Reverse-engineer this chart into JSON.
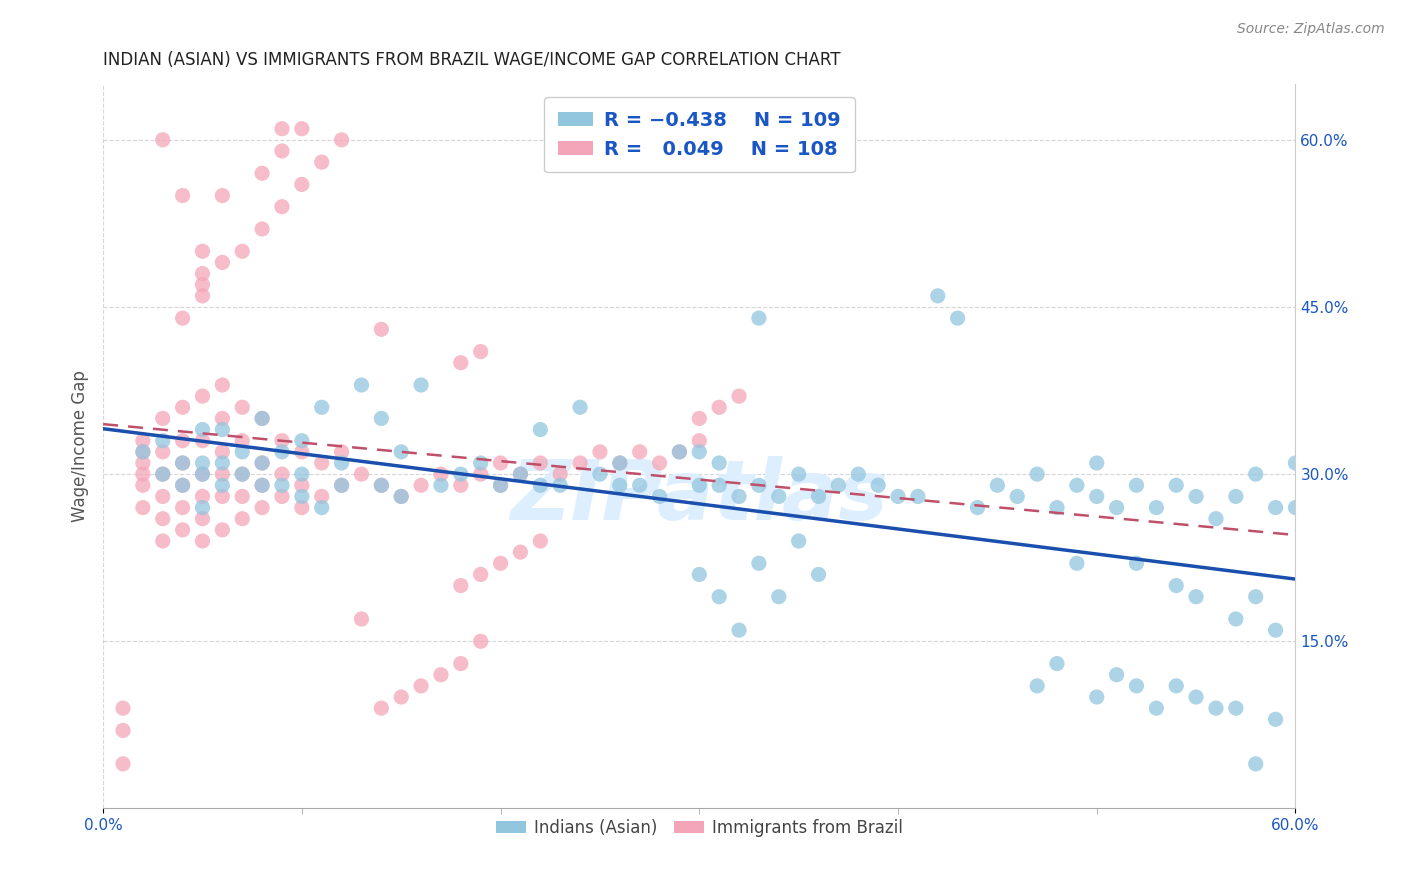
{
  "title": "INDIAN (ASIAN) VS IMMIGRANTS FROM BRAZIL WAGE/INCOME GAP CORRELATION CHART",
  "source": "Source: ZipAtlas.com",
  "ylabel": "Wage/Income Gap",
  "xlim": [
    0.0,
    0.6
  ],
  "ylim": [
    0.0,
    0.65
  ],
  "ytick_labels_right": [
    "15.0%",
    "30.0%",
    "45.0%",
    "60.0%"
  ],
  "ytick_vals_right": [
    0.15,
    0.3,
    0.45,
    0.6
  ],
  "color_blue": "#92c5de",
  "color_pink": "#f4a6b8",
  "trendline_blue": "#1a4fad",
  "trendline_pink": "#c0506a",
  "watermark": "ZIPatlas",
  "legend_text_color": "#1a56c4",
  "grid_color": "#cccccc",
  "blue_R": -0.438,
  "blue_N": 109,
  "pink_R": 0.049,
  "pink_N": 108,
  "blue_x": [
    0.02,
    0.03,
    0.03,
    0.04,
    0.04,
    0.05,
    0.05,
    0.05,
    0.05,
    0.06,
    0.06,
    0.06,
    0.07,
    0.07,
    0.08,
    0.08,
    0.08,
    0.09,
    0.09,
    0.1,
    0.1,
    0.1,
    0.11,
    0.11,
    0.12,
    0.12,
    0.13,
    0.14,
    0.14,
    0.15,
    0.15,
    0.16,
    0.17,
    0.18,
    0.19,
    0.2,
    0.21,
    0.22,
    0.22,
    0.23,
    0.24,
    0.25,
    0.26,
    0.26,
    0.27,
    0.28,
    0.29,
    0.3,
    0.3,
    0.31,
    0.31,
    0.32,
    0.33,
    0.33,
    0.34,
    0.35,
    0.36,
    0.37,
    0.38,
    0.39,
    0.4,
    0.41,
    0.42,
    0.43,
    0.44,
    0.45,
    0.46,
    0.47,
    0.48,
    0.49,
    0.5,
    0.5,
    0.51,
    0.52,
    0.52,
    0.53,
    0.54,
    0.54,
    0.55,
    0.55,
    0.56,
    0.57,
    0.57,
    0.58,
    0.58,
    0.59,
    0.59,
    0.6,
    0.6,
    0.3,
    0.31,
    0.32,
    0.33,
    0.34,
    0.35,
    0.36,
    0.47,
    0.48,
    0.49,
    0.5,
    0.51,
    0.52,
    0.53,
    0.54,
    0.55,
    0.56,
    0.57,
    0.58,
    0.59
  ],
  "blue_y": [
    0.32,
    0.3,
    0.33,
    0.29,
    0.31,
    0.27,
    0.3,
    0.31,
    0.34,
    0.29,
    0.31,
    0.34,
    0.3,
    0.32,
    0.29,
    0.31,
    0.35,
    0.29,
    0.32,
    0.28,
    0.3,
    0.33,
    0.27,
    0.36,
    0.29,
    0.31,
    0.38,
    0.29,
    0.35,
    0.28,
    0.32,
    0.38,
    0.29,
    0.3,
    0.31,
    0.29,
    0.3,
    0.29,
    0.34,
    0.29,
    0.36,
    0.3,
    0.29,
    0.31,
    0.29,
    0.28,
    0.32,
    0.29,
    0.32,
    0.29,
    0.31,
    0.28,
    0.29,
    0.44,
    0.28,
    0.3,
    0.28,
    0.29,
    0.3,
    0.29,
    0.28,
    0.28,
    0.46,
    0.44,
    0.27,
    0.29,
    0.28,
    0.3,
    0.27,
    0.29,
    0.28,
    0.31,
    0.27,
    0.29,
    0.22,
    0.27,
    0.29,
    0.2,
    0.28,
    0.19,
    0.26,
    0.28,
    0.17,
    0.3,
    0.19,
    0.27,
    0.16,
    0.31,
    0.27,
    0.21,
    0.19,
    0.16,
    0.22,
    0.19,
    0.24,
    0.21,
    0.11,
    0.13,
    0.22,
    0.1,
    0.12,
    0.11,
    0.09,
    0.11,
    0.1,
    0.09,
    0.09,
    0.04,
    0.08
  ],
  "pink_x": [
    0.01,
    0.01,
    0.01,
    0.02,
    0.02,
    0.02,
    0.02,
    0.02,
    0.02,
    0.03,
    0.03,
    0.03,
    0.03,
    0.03,
    0.03,
    0.04,
    0.04,
    0.04,
    0.04,
    0.04,
    0.04,
    0.05,
    0.05,
    0.05,
    0.05,
    0.05,
    0.05,
    0.06,
    0.06,
    0.06,
    0.06,
    0.06,
    0.06,
    0.07,
    0.07,
    0.07,
    0.07,
    0.07,
    0.08,
    0.08,
    0.08,
    0.08,
    0.09,
    0.09,
    0.09,
    0.1,
    0.1,
    0.1,
    0.11,
    0.11,
    0.12,
    0.12,
    0.13,
    0.13,
    0.14,
    0.15,
    0.16,
    0.17,
    0.18,
    0.19,
    0.2,
    0.2,
    0.21,
    0.22,
    0.23,
    0.24,
    0.25,
    0.26,
    0.27,
    0.28,
    0.29,
    0.3,
    0.18,
    0.19,
    0.3,
    0.31,
    0.32,
    0.06,
    0.08,
    0.09,
    0.1,
    0.07,
    0.08,
    0.09,
    0.1,
    0.11,
    0.12,
    0.05,
    0.06,
    0.04,
    0.05,
    0.05,
    0.14,
    0.18,
    0.19,
    0.2,
    0.21,
    0.22,
    0.14,
    0.15,
    0.16,
    0.17,
    0.18,
    0.03,
    0.04,
    0.05,
    0.09,
    0.19
  ],
  "pink_y": [
    0.04,
    0.07,
    0.09,
    0.27,
    0.29,
    0.3,
    0.31,
    0.32,
    0.33,
    0.24,
    0.26,
    0.28,
    0.3,
    0.32,
    0.35,
    0.25,
    0.27,
    0.29,
    0.31,
    0.33,
    0.36,
    0.24,
    0.26,
    0.28,
    0.3,
    0.33,
    0.37,
    0.25,
    0.28,
    0.3,
    0.32,
    0.35,
    0.38,
    0.26,
    0.28,
    0.3,
    0.33,
    0.36,
    0.27,
    0.29,
    0.31,
    0.35,
    0.28,
    0.3,
    0.33,
    0.27,
    0.29,
    0.32,
    0.28,
    0.31,
    0.29,
    0.32,
    0.3,
    0.17,
    0.29,
    0.28,
    0.29,
    0.3,
    0.29,
    0.3,
    0.29,
    0.31,
    0.3,
    0.31,
    0.3,
    0.31,
    0.32,
    0.31,
    0.32,
    0.31,
    0.32,
    0.33,
    0.4,
    0.41,
    0.35,
    0.36,
    0.37,
    0.55,
    0.57,
    0.59,
    0.61,
    0.5,
    0.52,
    0.54,
    0.56,
    0.58,
    0.6,
    0.47,
    0.49,
    0.44,
    0.46,
    0.48,
    0.43,
    0.2,
    0.21,
    0.22,
    0.23,
    0.24,
    0.09,
    0.1,
    0.11,
    0.12,
    0.13,
    0.6,
    0.55,
    0.5,
    0.61,
    0.15
  ],
  "legend_box_facecolor": "white",
  "legend_box_edgecolor": "#cccccc"
}
